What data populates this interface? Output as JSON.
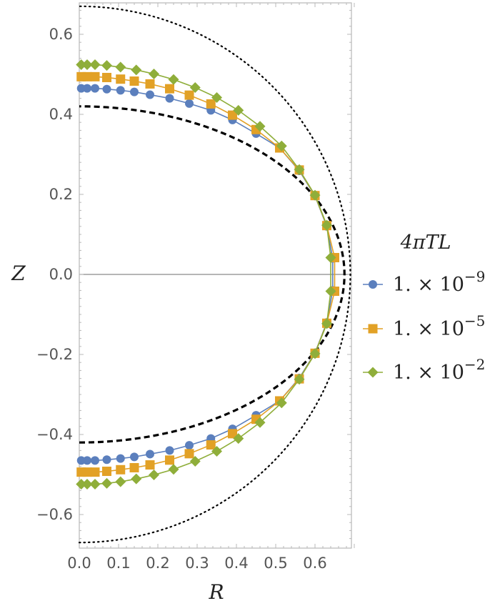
{
  "chart_data": {
    "type": "scatter",
    "title": "",
    "xlabel": "R",
    "ylabel": "Z",
    "xlim": [
      0.0,
      0.7
    ],
    "ylim": [
      -0.68,
      0.68
    ],
    "x_ticks": [
      "0.0",
      "0.1",
      "0.2",
      "0.3",
      "0.4",
      "0.5",
      "0.6"
    ],
    "y_ticks": [
      "0.6",
      "0.4",
      "0.2",
      "0.0",
      "−0.2",
      "−0.4",
      "−0.6"
    ],
    "legend": {
      "title": "4πTL",
      "placement": "right",
      "entries": [
        {
          "mantissa": "1. × 10",
          "exponent": "−9"
        },
        {
          "mantissa": "1. × 10",
          "exponent": "−5"
        },
        {
          "mantissa": "1. × 10",
          "exponent": "−2"
        }
      ]
    },
    "reference_curves": [
      {
        "style": "dashed",
        "shape": "half-ellipse",
        "r_max": 0.675,
        "z_max": 0.42
      },
      {
        "style": "dotted",
        "shape": "half-ellipse",
        "r_max": 0.69,
        "z_max": 0.67
      }
    ],
    "series": [
      {
        "color": "#5b7fbd",
        "marker": "circle",
        "points": [
          [
            0.005,
            0.465
          ],
          [
            0.02,
            0.465
          ],
          [
            0.04,
            0.465
          ],
          [
            0.07,
            0.463
          ],
          [
            0.105,
            0.46
          ],
          [
            0.14,
            0.456
          ],
          [
            0.18,
            0.449
          ],
          [
            0.23,
            0.44
          ],
          [
            0.28,
            0.427
          ],
          [
            0.335,
            0.41
          ],
          [
            0.39,
            0.386
          ],
          [
            0.45,
            0.352
          ],
          [
            0.51,
            0.316
          ],
          [
            0.56,
            0.259
          ],
          [
            0.6,
            0.196
          ],
          [
            0.63,
            0.12
          ],
          [
            0.645,
            0.04
          ],
          [
            0.645,
            -0.04
          ],
          [
            0.63,
            -0.12
          ],
          [
            0.6,
            -0.196
          ],
          [
            0.56,
            -0.259
          ],
          [
            0.51,
            -0.316
          ],
          [
            0.45,
            -0.352
          ],
          [
            0.39,
            -0.386
          ],
          [
            0.335,
            -0.41
          ],
          [
            0.28,
            -0.427
          ],
          [
            0.23,
            -0.44
          ],
          [
            0.18,
            -0.449
          ],
          [
            0.14,
            -0.456
          ],
          [
            0.105,
            -0.46
          ],
          [
            0.07,
            -0.463
          ],
          [
            0.04,
            -0.465
          ],
          [
            0.02,
            -0.465
          ],
          [
            0.005,
            -0.465
          ]
        ]
      },
      {
        "color": "#e2a126",
        "marker": "square",
        "points": [
          [
            0.005,
            0.494
          ],
          [
            0.02,
            0.494
          ],
          [
            0.04,
            0.494
          ],
          [
            0.07,
            0.492
          ],
          [
            0.105,
            0.488
          ],
          [
            0.14,
            0.483
          ],
          [
            0.18,
            0.476
          ],
          [
            0.23,
            0.464
          ],
          [
            0.28,
            0.448
          ],
          [
            0.335,
            0.426
          ],
          [
            0.39,
            0.398
          ],
          [
            0.45,
            0.362
          ],
          [
            0.51,
            0.316
          ],
          [
            0.56,
            0.261
          ],
          [
            0.6,
            0.197
          ],
          [
            0.63,
            0.122
          ],
          [
            0.65,
            0.042
          ],
          [
            0.65,
            -0.042
          ],
          [
            0.63,
            -0.122
          ],
          [
            0.6,
            -0.197
          ],
          [
            0.56,
            -0.261
          ],
          [
            0.51,
            -0.316
          ],
          [
            0.45,
            -0.362
          ],
          [
            0.39,
            -0.398
          ],
          [
            0.335,
            -0.426
          ],
          [
            0.28,
            -0.448
          ],
          [
            0.23,
            -0.464
          ],
          [
            0.18,
            -0.476
          ],
          [
            0.14,
            -0.483
          ],
          [
            0.105,
            -0.488
          ],
          [
            0.07,
            -0.492
          ],
          [
            0.04,
            -0.494
          ],
          [
            0.02,
            -0.494
          ],
          [
            0.005,
            -0.494
          ]
        ]
      },
      {
        "color": "#8fae3a",
        "marker": "diamond",
        "points": [
          [
            0.005,
            0.524
          ],
          [
            0.02,
            0.524
          ],
          [
            0.04,
            0.524
          ],
          [
            0.07,
            0.522
          ],
          [
            0.105,
            0.518
          ],
          [
            0.145,
            0.511
          ],
          [
            0.19,
            0.501
          ],
          [
            0.24,
            0.487
          ],
          [
            0.295,
            0.467
          ],
          [
            0.35,
            0.442
          ],
          [
            0.405,
            0.41
          ],
          [
            0.46,
            0.37
          ],
          [
            0.515,
            0.321
          ],
          [
            0.56,
            0.262
          ],
          [
            0.6,
            0.198
          ],
          [
            0.63,
            0.123
          ],
          [
            0.64,
            0.042
          ],
          [
            0.64,
            -0.042
          ],
          [
            0.63,
            -0.123
          ],
          [
            0.6,
            -0.198
          ],
          [
            0.56,
            -0.262
          ],
          [
            0.515,
            -0.321
          ],
          [
            0.46,
            -0.37
          ],
          [
            0.405,
            -0.41
          ],
          [
            0.35,
            -0.442
          ],
          [
            0.295,
            -0.467
          ],
          [
            0.24,
            -0.487
          ],
          [
            0.19,
            -0.501
          ],
          [
            0.145,
            -0.511
          ],
          [
            0.105,
            -0.518
          ],
          [
            0.07,
            -0.522
          ],
          [
            0.04,
            -0.524
          ],
          [
            0.02,
            -0.524
          ],
          [
            0.005,
            -0.524
          ]
        ]
      }
    ]
  }
}
